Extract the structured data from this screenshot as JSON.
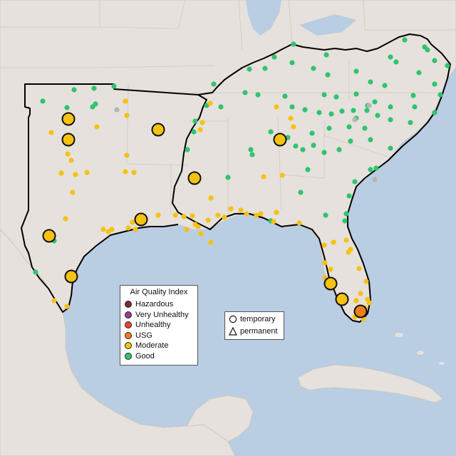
{
  "legend": {
    "title": "Air Quality Index",
    "items": [
      {
        "label": "Hazardous",
        "color": "#7e2b2b"
      },
      {
        "label": "Very Unhealthy",
        "color": "#8f3f97"
      },
      {
        "label": "Unhealthy",
        "color": "#e6442c"
      },
      {
        "label": "USG",
        "color": "#f07d1a"
      },
      {
        "label": "Moderate",
        "color": "#f5c211"
      },
      {
        "label": "Good",
        "color": "#2fc46f"
      }
    ]
  },
  "monitor_types": {
    "items": [
      {
        "label": "temporary",
        "icon": "circle-icon"
      },
      {
        "label": "permanent",
        "icon": "triangle-icon"
      }
    ]
  },
  "colors": {
    "water": "#b9cde3",
    "land": "#e6e1dc",
    "region_outline": "#000000",
    "moderate": "#f5c211",
    "good": "#2fc46f",
    "usg": "#f07d1a",
    "no_data": "#b5b5b5"
  }
}
